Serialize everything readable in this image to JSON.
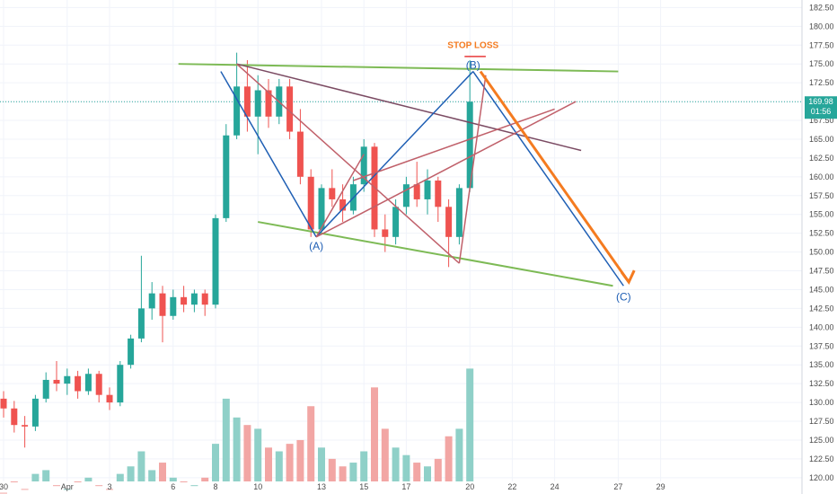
{
  "chart_data": {
    "type": "candlestick",
    "y_ticks": [
      "182.50",
      "180.00",
      "177.50",
      "175.00",
      "172.50",
      "170.00",
      "167.50",
      "165.00",
      "162.50",
      "160.00",
      "157.50",
      "155.00",
      "152.50",
      "150.00",
      "147.50",
      "145.00",
      "142.50",
      "140.00",
      "137.50",
      "135.00",
      "132.50",
      "130.00",
      "127.50",
      "125.00",
      "122.50",
      "120.00"
    ],
    "y_tick_values": [
      182.5,
      180,
      177.5,
      175,
      172.5,
      170,
      167.5,
      165,
      162.5,
      160,
      157.5,
      155,
      152.5,
      150,
      147.5,
      145,
      142.5,
      140,
      137.5,
      135,
      132.5,
      130,
      127.5,
      125,
      122.5,
      120
    ],
    "ylim": [
      119.5,
      183.5
    ],
    "x_ticks": [
      "30",
      "Apr",
      "3",
      "6",
      "8",
      "10",
      "13",
      "15",
      "17",
      "20",
      "22",
      "24",
      "27",
      "29"
    ],
    "x_tick_index": [
      0,
      6,
      10,
      16,
      20,
      24,
      30,
      34,
      38,
      44,
      48,
      52,
      58,
      62
    ],
    "current_price": "169.98",
    "countdown": "01:56",
    "series": [
      {
        "index": 0,
        "open": 130.5,
        "high": 131.5,
        "low": 128.0,
        "close": 129.2
      },
      {
        "index": 1,
        "open": 129.2,
        "high": 130.2,
        "low": 126.0,
        "close": 127.0
      },
      {
        "index": 2,
        "open": 127.0,
        "high": 128.2,
        "low": 124.0,
        "close": 126.8
      },
      {
        "index": 3,
        "open": 126.8,
        "high": 131.0,
        "low": 126.2,
        "close": 130.5
      },
      {
        "index": 4,
        "open": 130.5,
        "high": 134.0,
        "low": 130.0,
        "close": 133.0
      },
      {
        "index": 5,
        "open": 133.0,
        "high": 135.5,
        "low": 131.5,
        "close": 132.5
      },
      {
        "index": 6,
        "open": 132.5,
        "high": 134.5,
        "low": 131.0,
        "close": 133.5
      },
      {
        "index": 7,
        "open": 133.5,
        "high": 134.2,
        "low": 130.5,
        "close": 131.5
      },
      {
        "index": 8,
        "open": 131.5,
        "high": 134.5,
        "low": 131.0,
        "close": 133.8
      },
      {
        "index": 9,
        "open": 133.8,
        "high": 134.2,
        "low": 130.0,
        "close": 131.0
      },
      {
        "index": 10,
        "open": 131.0,
        "high": 132.0,
        "low": 129.0,
        "close": 130.0
      },
      {
        "index": 11,
        "open": 130.0,
        "high": 135.5,
        "low": 129.5,
        "close": 135.0
      },
      {
        "index": 12,
        "open": 135.0,
        "high": 139.0,
        "low": 134.5,
        "close": 138.5
      },
      {
        "index": 13,
        "open": 138.5,
        "high": 149.5,
        "low": 138.0,
        "close": 142.5
      },
      {
        "index": 14,
        "open": 142.5,
        "high": 146.0,
        "low": 141.0,
        "close": 144.5
      },
      {
        "index": 15,
        "open": 144.5,
        "high": 145.5,
        "low": 138.0,
        "close": 141.5
      },
      {
        "index": 16,
        "open": 141.5,
        "high": 145.0,
        "low": 141.0,
        "close": 144.0
      },
      {
        "index": 17,
        "open": 144.0,
        "high": 145.5,
        "low": 142.0,
        "close": 143.0
      },
      {
        "index": 18,
        "open": 143.0,
        "high": 145.0,
        "low": 142.0,
        "close": 144.5
      },
      {
        "index": 19,
        "open": 144.5,
        "high": 145.0,
        "low": 141.5,
        "close": 143.0
      },
      {
        "index": 20,
        "open": 143.0,
        "high": 155.0,
        "low": 142.5,
        "close": 154.5
      },
      {
        "index": 21,
        "open": 154.5,
        "high": 167.0,
        "low": 154.0,
        "close": 165.5
      },
      {
        "index": 22,
        "open": 165.5,
        "high": 176.5,
        "low": 165.0,
        "close": 172.0
      },
      {
        "index": 23,
        "open": 172.0,
        "high": 175.5,
        "low": 166.0,
        "close": 168.0
      },
      {
        "index": 24,
        "open": 168.0,
        "high": 173.5,
        "low": 163.0,
        "close": 171.5
      },
      {
        "index": 25,
        "open": 171.5,
        "high": 173.0,
        "low": 166.5,
        "close": 168.0
      },
      {
        "index": 26,
        "open": 168.0,
        "high": 173.0,
        "low": 167.0,
        "close": 172.0
      },
      {
        "index": 27,
        "open": 172.0,
        "high": 173.0,
        "low": 165.0,
        "close": 166.0
      },
      {
        "index": 28,
        "open": 166.0,
        "high": 169.0,
        "low": 159.0,
        "close": 160.0
      },
      {
        "index": 29,
        "open": 160.0,
        "high": 161.0,
        "low": 152.0,
        "close": 153.0
      },
      {
        "index": 30,
        "open": 153.0,
        "high": 159.0,
        "low": 152.5,
        "close": 158.5
      },
      {
        "index": 31,
        "open": 158.5,
        "high": 161.0,
        "low": 156.0,
        "close": 157.0
      },
      {
        "index": 32,
        "open": 157.0,
        "high": 159.0,
        "low": 154.0,
        "close": 155.5
      },
      {
        "index": 33,
        "open": 155.5,
        "high": 160.0,
        "low": 155.0,
        "close": 159.0
      },
      {
        "index": 34,
        "open": 159.0,
        "high": 165.0,
        "low": 158.0,
        "close": 164.0
      },
      {
        "index": 35,
        "open": 164.0,
        "high": 164.5,
        "low": 152.0,
        "close": 153.0
      },
      {
        "index": 36,
        "open": 153.0,
        "high": 155.0,
        "low": 150.0,
        "close": 152.0
      },
      {
        "index": 37,
        "open": 152.0,
        "high": 157.0,
        "low": 151.0,
        "close": 156.0
      },
      {
        "index": 38,
        "open": 156.0,
        "high": 160.0,
        "low": 155.0,
        "close": 159.0
      },
      {
        "index": 39,
        "open": 159.0,
        "high": 162.0,
        "low": 156.0,
        "close": 157.0
      },
      {
        "index": 40,
        "open": 157.0,
        "high": 161.0,
        "low": 155.0,
        "close": 159.5
      },
      {
        "index": 41,
        "open": 159.5,
        "high": 160.0,
        "low": 154.0,
        "close": 156.0
      },
      {
        "index": 42,
        "open": 156.0,
        "high": 157.0,
        "low": 148.0,
        "close": 152.0
      },
      {
        "index": 43,
        "open": 152.0,
        "high": 159.0,
        "low": 151.0,
        "close": 158.5
      },
      {
        "index": 44,
        "open": 158.5,
        "high": 175.5,
        "low": 158.0,
        "close": 169.98
      }
    ],
    "volumes": [
      {
        "index": 0,
        "value": 118.0,
        "up": false
      },
      {
        "index": 1,
        "value": 119.5,
        "up": false
      },
      {
        "index": 2,
        "value": 118.5,
        "up": false
      },
      {
        "index": 3,
        "value": 120.5,
        "up": true
      },
      {
        "index": 4,
        "value": 121.0,
        "up": true
      },
      {
        "index": 5,
        "value": 119.0,
        "up": false
      },
      {
        "index": 6,
        "value": 118.5,
        "up": true
      },
      {
        "index": 7,
        "value": 119.5,
        "up": false
      },
      {
        "index": 8,
        "value": 120.0,
        "up": true
      },
      {
        "index": 9,
        "value": 119.0,
        "up": false
      },
      {
        "index": 10,
        "value": 118.5,
        "up": false
      },
      {
        "index": 11,
        "value": 120.5,
        "up": true
      },
      {
        "index": 12,
        "value": 121.5,
        "up": true
      },
      {
        "index": 13,
        "value": 123.5,
        "up": true
      },
      {
        "index": 14,
        "value": 121.0,
        "up": true
      },
      {
        "index": 15,
        "value": 122.0,
        "up": false
      },
      {
        "index": 16,
        "value": 120.0,
        "up": true
      },
      {
        "index": 17,
        "value": 119.5,
        "up": false
      },
      {
        "index": 18,
        "value": 119.0,
        "up": true
      },
      {
        "index": 19,
        "value": 120.0,
        "up": false
      },
      {
        "index": 20,
        "value": 124.5,
        "up": true
      },
      {
        "index": 21,
        "value": 130.5,
        "up": true
      },
      {
        "index": 22,
        "value": 128.0,
        "up": true
      },
      {
        "index": 23,
        "value": 127.0,
        "up": false
      },
      {
        "index": 24,
        "value": 126.5,
        "up": true
      },
      {
        "index": 25,
        "value": 124.0,
        "up": false
      },
      {
        "index": 26,
        "value": 123.5,
        "up": true
      },
      {
        "index": 27,
        "value": 124.5,
        "up": false
      },
      {
        "index": 28,
        "value": 125.0,
        "up": false
      },
      {
        "index": 29,
        "value": 129.5,
        "up": false
      },
      {
        "index": 30,
        "value": 124.0,
        "up": true
      },
      {
        "index": 31,
        "value": 122.5,
        "up": false
      },
      {
        "index": 32,
        "value": 121.5,
        "up": false
      },
      {
        "index": 33,
        "value": 122.0,
        "up": true
      },
      {
        "index": 34,
        "value": 123.5,
        "up": true
      },
      {
        "index": 35,
        "value": 132.0,
        "up": false
      },
      {
        "index": 36,
        "value": 126.5,
        "up": false
      },
      {
        "index": 37,
        "value": 124.0,
        "up": true
      },
      {
        "index": 38,
        "value": 123.0,
        "up": true
      },
      {
        "index": 39,
        "value": 122.0,
        "up": false
      },
      {
        "index": 40,
        "value": 121.5,
        "up": true
      },
      {
        "index": 41,
        "value": 122.5,
        "up": false
      },
      {
        "index": 42,
        "value": 125.5,
        "up": false
      },
      {
        "index": 43,
        "value": 126.5,
        "up": true
      },
      {
        "index": 44,
        "value": 134.5,
        "up": true
      }
    ],
    "annotations": {
      "wave_A": {
        "label": "(A)",
        "index": 29.5,
        "price": 152.0
      },
      "wave_B": {
        "label": "(B)",
        "index": 44.3,
        "price": 174.0
      },
      "wave_C": {
        "label": "(C)",
        "index": 58.5,
        "price": 145.5
      },
      "stop_loss": {
        "label": "STOP LOSS",
        "index": 44.3,
        "price": 176.5
      },
      "lines": [
        {
          "name": "upper-trendline",
          "color": "#7dba55",
          "from": [
            16.5,
            175.0
          ],
          "to": [
            58.0,
            174.0
          ]
        },
        {
          "name": "lower-trendline",
          "color": "#7dba55",
          "from": [
            24.0,
            154.0
          ],
          "to": [
            57.5,
            145.5
          ]
        },
        {
          "name": "diagonal-resistance",
          "color": "#7b4b63",
          "from": [
            22.0,
            175.0
          ],
          "to": [
            54.5,
            163.5
          ]
        },
        {
          "name": "wave-line-1",
          "color": "#1f5fb4",
          "from": [
            20.5,
            174.0
          ],
          "to": [
            29.5,
            152.0
          ]
        },
        {
          "name": "wave-line-2",
          "color": "#1f5fb4",
          "from": [
            29.5,
            152.0
          ],
          "to": [
            44.3,
            174.0
          ]
        },
        {
          "name": "wave-line-3",
          "color": "#1f5fb4",
          "from": [
            44.3,
            174.0
          ],
          "to": [
            58.5,
            145.5
          ]
        },
        {
          "name": "inner-line-1",
          "color": "#c0606a",
          "from": [
            22.0,
            175.0
          ],
          "to": [
            43.0,
            148.5
          ]
        },
        {
          "name": "inner-line-2",
          "color": "#c0606a",
          "from": [
            29.5,
            152.0
          ],
          "to": [
            34.0,
            163.0
          ]
        },
        {
          "name": "inner-line-3",
          "color": "#c0606a",
          "from": [
            29.5,
            152.0
          ],
          "to": [
            54.0,
            170.0
          ]
        },
        {
          "name": "inner-line-4",
          "color": "#c0606a",
          "from": [
            33.0,
            159.5
          ],
          "to": [
            52.0,
            169.0
          ]
        },
        {
          "name": "inner-line-5",
          "color": "#c0606a",
          "from": [
            43.0,
            148.5
          ],
          "to": [
            45.5,
            173.5
          ]
        },
        {
          "name": "stop-loss-line",
          "color": "#e83a3a",
          "from": [
            43.5,
            176.0
          ],
          "to": [
            45.5,
            176.0
          ]
        }
      ],
      "arrow": {
        "color": "#f47b20",
        "from": [
          45.0,
          174.0
        ],
        "to": [
          59.0,
          146.0
        ]
      }
    }
  },
  "colors": {
    "up": "#26a69a",
    "down": "#ef5350",
    "vol_up": "#8fd0c8",
    "vol_down": "#f2a6a4",
    "price_tag": "#26a69a",
    "grid": "#f0f3fa",
    "axis_text": "#4a4a4a"
  }
}
